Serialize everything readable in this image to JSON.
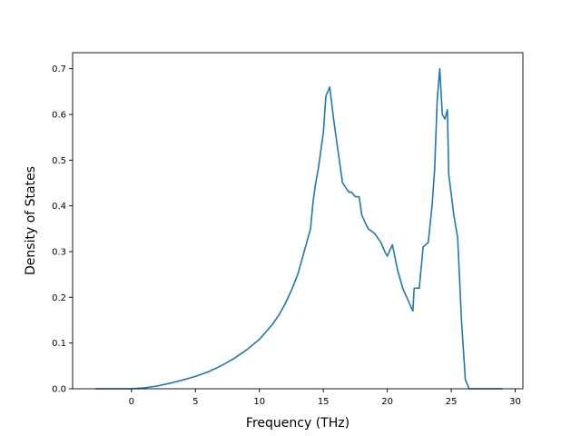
{
  "chart_data": {
    "type": "line",
    "title": "",
    "xlabel": "Frequency (THz)",
    "ylabel": "Density of States",
    "xlim": [
      -4.6,
      30.6
    ],
    "ylim": [
      0,
      0.735
    ],
    "xticks": [
      0,
      5,
      10,
      15,
      20,
      25,
      30
    ],
    "yticks": [
      0.0,
      0.1,
      0.2,
      0.3,
      0.4,
      0.5,
      0.6,
      0.7
    ],
    "xtick_labels": [
      "0",
      "5",
      "10",
      "15",
      "20",
      "25",
      "30"
    ],
    "ytick_labels": [
      "0.0",
      "0.1",
      "0.2",
      "0.3",
      "0.4",
      "0.5",
      "0.6",
      "0.7"
    ],
    "grid": false,
    "line_color": "#1f77b4",
    "series": [
      {
        "x": [
          -2.8,
          -2.0,
          -1.0,
          0.0,
          1.0,
          2.0,
          3.0,
          4.0,
          5.0,
          6.0,
          7.0,
          8.0,
          9.0,
          10.0,
          11.0,
          11.5,
          12.0,
          12.5,
          13.0,
          13.5,
          13.7,
          14.0,
          14.2,
          14.4,
          14.6,
          14.8,
          15.0,
          15.2,
          15.5,
          15.8,
          16.0,
          16.5,
          17.0,
          17.2,
          17.5,
          17.8,
          18.0,
          18.5,
          19.0,
          19.5,
          19.8,
          20.0,
          20.4,
          20.8,
          21.2,
          21.6,
          22.0,
          22.1,
          22.5,
          22.8,
          23.2,
          23.5,
          23.7,
          23.9,
          24.1,
          24.3,
          24.5,
          24.7,
          24.8,
          25.2,
          25.5,
          25.8,
          26.1,
          26.4,
          26.6,
          27.0,
          28.0,
          29.0
        ],
        "y": [
          0.0,
          0.0,
          0.0,
          0.0,
          0.002,
          0.006,
          0.012,
          0.019,
          0.027,
          0.037,
          0.05,
          0.066,
          0.085,
          0.108,
          0.14,
          0.16,
          0.185,
          0.215,
          0.25,
          0.3,
          0.32,
          0.35,
          0.41,
          0.45,
          0.48,
          0.52,
          0.56,
          0.64,
          0.66,
          0.59,
          0.55,
          0.45,
          0.43,
          0.43,
          0.42,
          0.42,
          0.38,
          0.35,
          0.34,
          0.32,
          0.3,
          0.29,
          0.315,
          0.26,
          0.22,
          0.195,
          0.17,
          0.22,
          0.22,
          0.31,
          0.32,
          0.4,
          0.48,
          0.63,
          0.7,
          0.6,
          0.59,
          0.61,
          0.47,
          0.38,
          0.33,
          0.15,
          0.02,
          0.0,
          0.0,
          0.0,
          0.0,
          0.0
        ]
      }
    ]
  }
}
